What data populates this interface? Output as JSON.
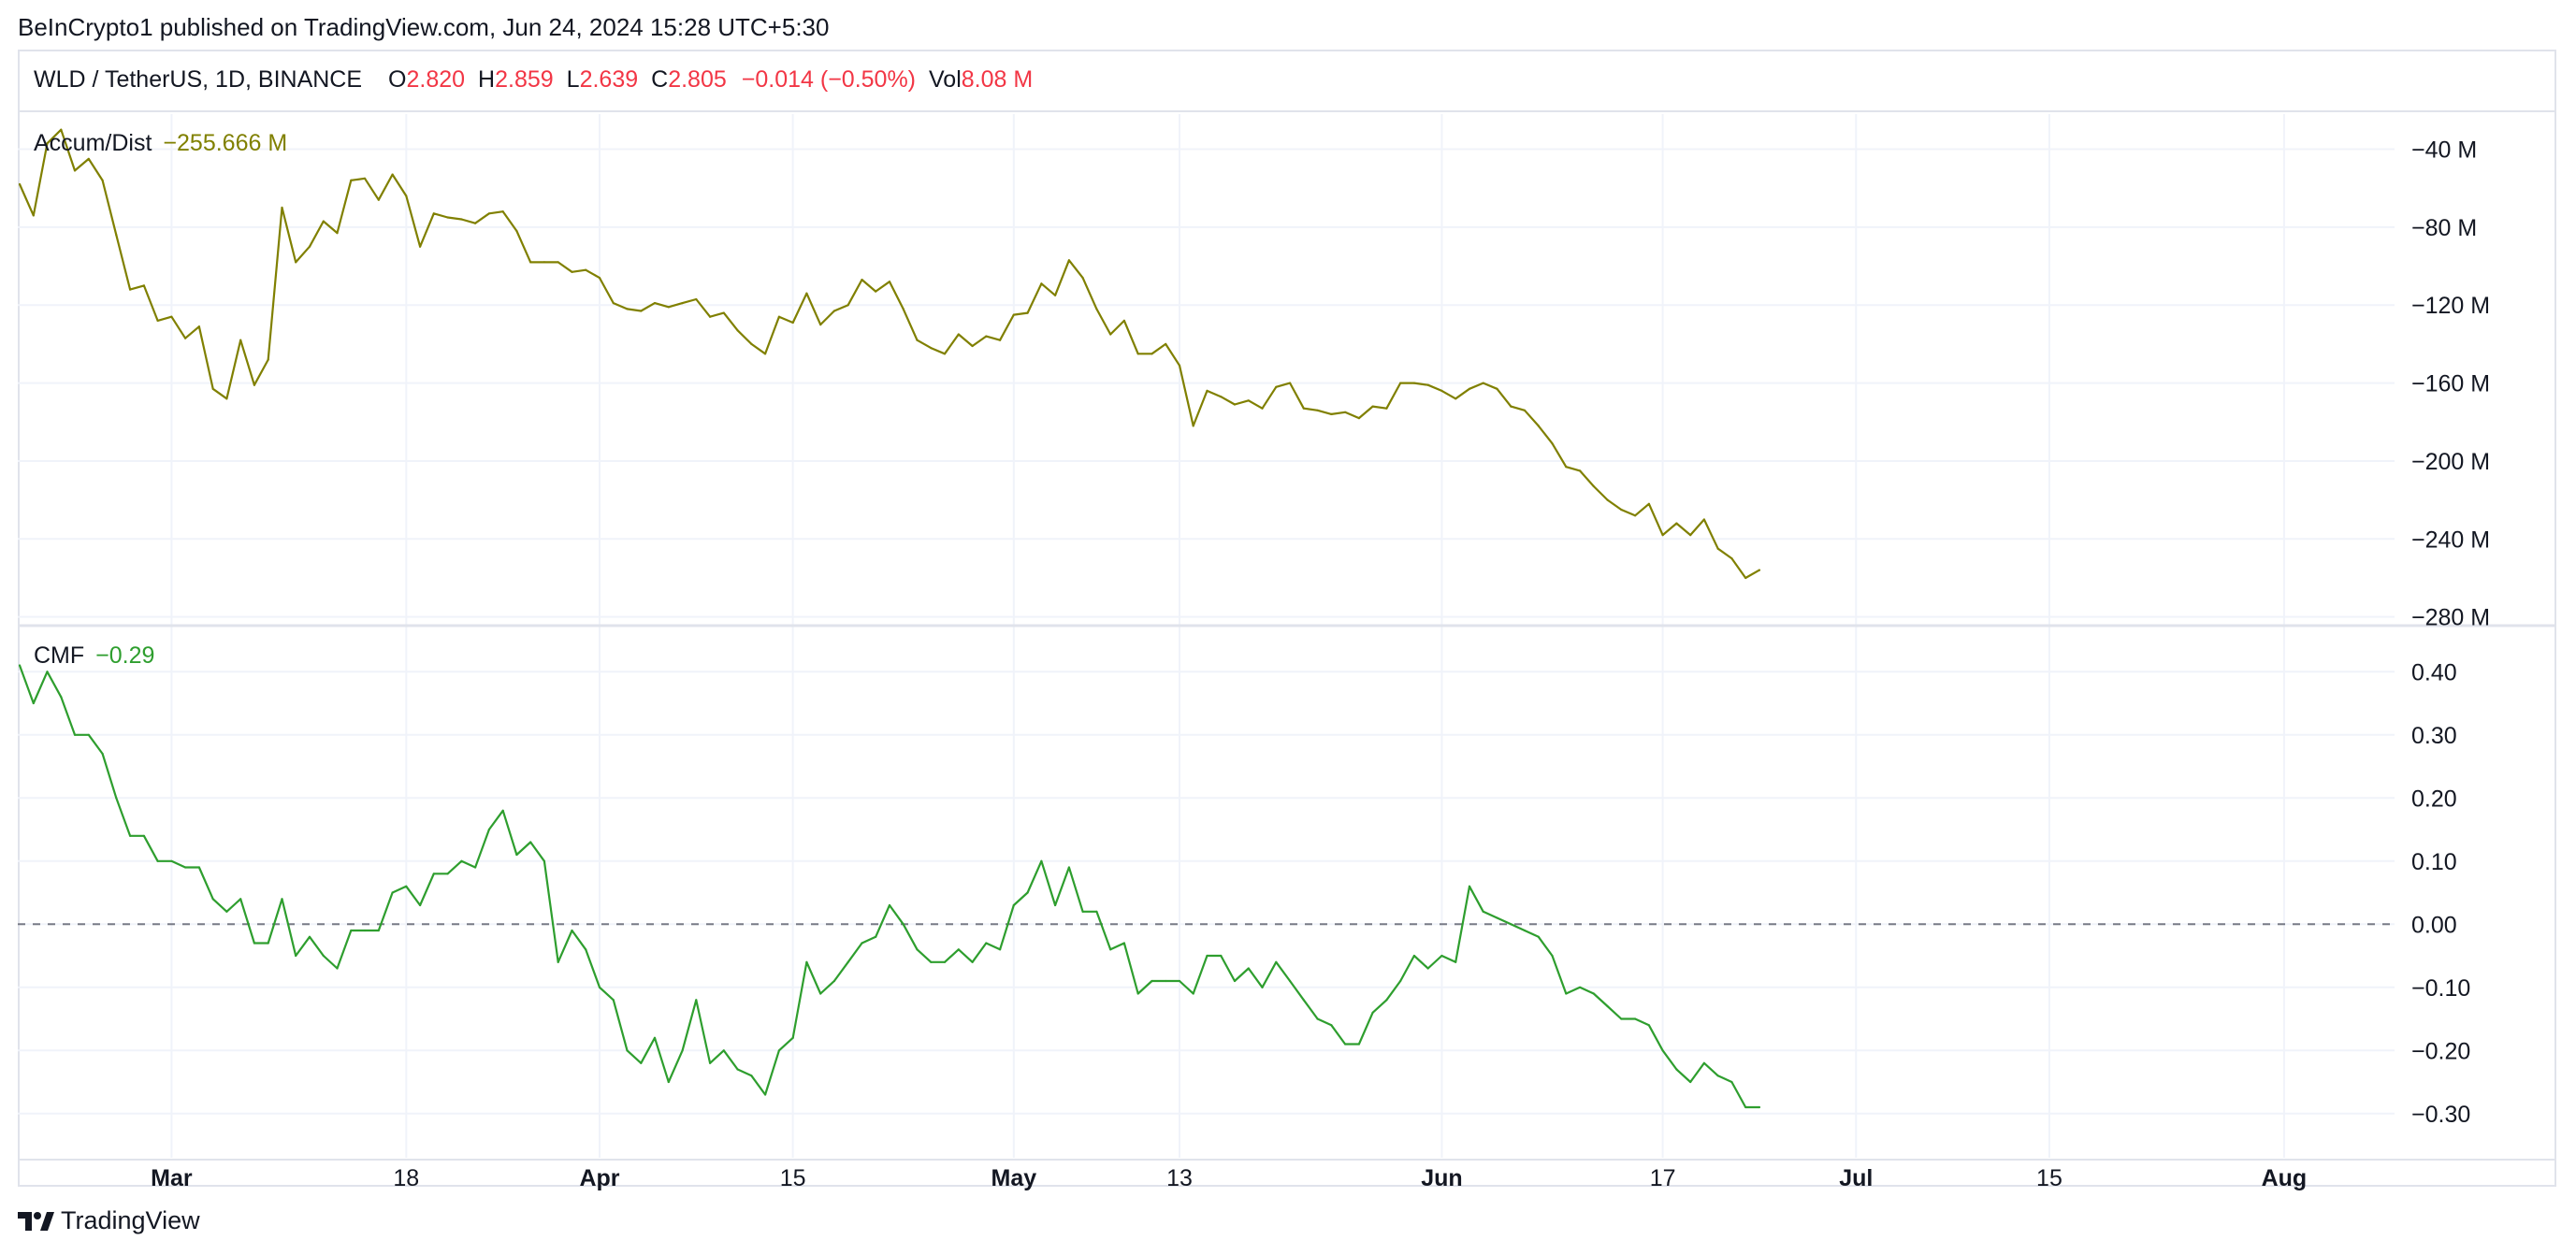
{
  "header": {
    "publish": "BeInCrypto1 published on TradingView.com, Jun 24, 2024 15:28 UTC+5:30",
    "symbol": "WLD / TetherUS, 1D, BINANCE",
    "o_label": "O",
    "o_value": "2.820",
    "h_label": "H",
    "h_value": "2.859",
    "l_label": "L",
    "l_value": "2.639",
    "c_label": "C",
    "c_value": "2.805",
    "change": "−0.014 (−0.50%)",
    "vol_label": "Vol",
    "vol_value": "8.08 M"
  },
  "accum_pane": {
    "name": "Accum/Dist",
    "value": "−255.666 M"
  },
  "cmf_pane": {
    "name": "CMF",
    "value": "−0.29"
  },
  "logo": {
    "icon": "tradingview-logo-icon",
    "text": "TradingView"
  },
  "colors": {
    "accum": "#808000",
    "cmf": "#2e9e2e",
    "value_red": "#f23645",
    "grid": "#f0f3fa"
  },
  "chart_data": [
    {
      "type": "line",
      "title": "Accum/Dist",
      "unit": "M",
      "ylim": [
        -280,
        -20
      ],
      "y_ticks": [
        "−40 M",
        "−80 M",
        "−120 M",
        "−160 M",
        "−200 M",
        "−240 M",
        "−280 M"
      ],
      "x_start": "2024-02-19",
      "x": [
        "2024-02-19",
        "2024-02-20",
        "2024-02-21",
        "2024-02-22",
        "2024-02-23",
        "2024-02-24",
        "2024-02-25",
        "2024-02-26",
        "2024-02-27",
        "2024-02-28",
        "2024-02-29",
        "2024-03-01",
        "2024-03-02",
        "2024-03-03",
        "2024-03-04",
        "2024-03-05",
        "2024-03-06",
        "2024-03-07",
        "2024-03-08",
        "2024-03-09",
        "2024-03-10",
        "2024-03-11",
        "2024-03-12",
        "2024-03-13",
        "2024-03-14",
        "2024-03-15",
        "2024-03-16",
        "2024-03-17",
        "2024-03-18",
        "2024-03-19",
        "2024-03-20",
        "2024-03-21",
        "2024-03-22",
        "2024-03-23",
        "2024-03-24",
        "2024-03-25",
        "2024-03-26",
        "2024-03-27",
        "2024-03-28",
        "2024-03-29",
        "2024-03-30",
        "2024-03-31",
        "2024-04-01",
        "2024-04-02",
        "2024-04-03",
        "2024-04-04",
        "2024-04-05",
        "2024-04-06",
        "2024-04-07",
        "2024-04-08",
        "2024-04-09",
        "2024-04-10",
        "2024-04-11",
        "2024-04-12",
        "2024-04-13",
        "2024-04-14",
        "2024-04-15",
        "2024-04-16",
        "2024-04-17",
        "2024-04-18",
        "2024-04-19",
        "2024-04-20",
        "2024-04-21",
        "2024-04-22",
        "2024-04-23",
        "2024-04-24",
        "2024-04-25",
        "2024-04-26",
        "2024-04-27",
        "2024-04-28",
        "2024-04-29",
        "2024-04-30",
        "2024-05-01",
        "2024-05-02",
        "2024-05-03",
        "2024-05-04",
        "2024-05-05",
        "2024-05-06",
        "2024-05-07",
        "2024-05-08",
        "2024-05-09",
        "2024-05-10",
        "2024-05-11",
        "2024-05-12",
        "2024-05-13",
        "2024-05-14",
        "2024-05-15",
        "2024-05-16",
        "2024-05-17",
        "2024-05-18",
        "2024-05-19",
        "2024-05-20",
        "2024-05-21",
        "2024-05-22",
        "2024-05-23",
        "2024-05-24",
        "2024-05-25",
        "2024-05-26",
        "2024-05-27",
        "2024-05-28",
        "2024-05-29",
        "2024-05-30",
        "2024-05-31",
        "2024-06-01",
        "2024-06-02",
        "2024-06-03",
        "2024-06-04",
        "2024-06-05",
        "2024-06-06",
        "2024-06-07",
        "2024-06-08",
        "2024-06-09",
        "2024-06-10",
        "2024-06-11",
        "2024-06-12",
        "2024-06-13",
        "2024-06-14",
        "2024-06-15",
        "2024-06-16",
        "2024-06-17",
        "2024-06-18",
        "2024-06-19",
        "2024-06-20",
        "2024-06-21",
        "2024-06-22",
        "2024-06-23",
        "2024-06-24"
      ],
      "values": [
        -58,
        -74,
        -37,
        -30,
        -51,
        -45,
        -56,
        -84,
        -112,
        -110,
        -128,
        -126,
        -137,
        -131,
        -163,
        -168,
        -138,
        -161,
        -148,
        -70,
        -98,
        -90,
        -77,
        -83,
        -56,
        -55,
        -66,
        -53,
        -64,
        -90,
        -73,
        -75,
        -76,
        -78,
        -73,
        -72,
        -82,
        -98,
        -98,
        -98,
        -103,
        -102,
        -106,
        -119,
        -122,
        -123,
        -119,
        -121,
        -119,
        -117,
        -126,
        -124,
        -133,
        -140,
        -145,
        -126,
        -129,
        -114,
        -130,
        -123,
        -120,
        -107,
        -113,
        -108,
        -122,
        -138,
        -142,
        -145,
        -135,
        -141,
        -136,
        -138,
        -125,
        -124,
        -109,
        -115,
        -97,
        -106,
        -122,
        -135,
        -128,
        -145,
        -145,
        -140,
        -151,
        -182,
        -164,
        -167,
        -171,
        -169,
        -173,
        -162,
        -160,
        -173,
        -174,
        -176,
        -175,
        -178,
        -172,
        -173,
        -160,
        -160,
        -161,
        -164,
        -168,
        -163,
        -160,
        -163,
        -172,
        -174,
        -182,
        -191,
        -203,
        -205,
        -213,
        -220,
        -225,
        -228,
        -222,
        -238,
        -232,
        -238,
        -230,
        -245,
        -250,
        -260,
        -256
      ]
    },
    {
      "type": "line",
      "title": "CMF",
      "ylim": [
        -0.35,
        0.45
      ],
      "y_ticks": [
        "0.40",
        "0.30",
        "0.20",
        "0.10",
        "0.00",
        "−0.10",
        "−0.20",
        "−0.30"
      ],
      "zero_line": 0.0,
      "x_start": "2024-02-19",
      "x": [
        "2024-02-19",
        "2024-02-20",
        "2024-02-21",
        "2024-02-22",
        "2024-02-23",
        "2024-02-24",
        "2024-02-25",
        "2024-02-26",
        "2024-02-27",
        "2024-02-28",
        "2024-02-29",
        "2024-03-01",
        "2024-03-02",
        "2024-03-03",
        "2024-03-04",
        "2024-03-05",
        "2024-03-06",
        "2024-03-07",
        "2024-03-08",
        "2024-03-09",
        "2024-03-10",
        "2024-03-11",
        "2024-03-12",
        "2024-03-13",
        "2024-03-14",
        "2024-03-15",
        "2024-03-16",
        "2024-03-17",
        "2024-03-18",
        "2024-03-19",
        "2024-03-20",
        "2024-03-21",
        "2024-03-22",
        "2024-03-23",
        "2024-03-24",
        "2024-03-25",
        "2024-03-26",
        "2024-03-27",
        "2024-03-28",
        "2024-03-29",
        "2024-03-30",
        "2024-03-31",
        "2024-04-01",
        "2024-04-02",
        "2024-04-03",
        "2024-04-04",
        "2024-04-05",
        "2024-04-06",
        "2024-04-07",
        "2024-04-08",
        "2024-04-09",
        "2024-04-10",
        "2024-04-11",
        "2024-04-12",
        "2024-04-13",
        "2024-04-14",
        "2024-04-15",
        "2024-04-16",
        "2024-04-17",
        "2024-04-18",
        "2024-04-19",
        "2024-04-20",
        "2024-04-21",
        "2024-04-22",
        "2024-04-23",
        "2024-04-24",
        "2024-04-25",
        "2024-04-26",
        "2024-04-27",
        "2024-04-28",
        "2024-04-29",
        "2024-04-30",
        "2024-05-01",
        "2024-05-02",
        "2024-05-03",
        "2024-05-04",
        "2024-05-05",
        "2024-05-06",
        "2024-05-07",
        "2024-05-08",
        "2024-05-09",
        "2024-05-10",
        "2024-05-11",
        "2024-05-12",
        "2024-05-13",
        "2024-05-14",
        "2024-05-15",
        "2024-05-16",
        "2024-05-17",
        "2024-05-18",
        "2024-05-19",
        "2024-05-20",
        "2024-05-21",
        "2024-05-22",
        "2024-05-23",
        "2024-05-24",
        "2024-05-25",
        "2024-05-26",
        "2024-05-27",
        "2024-05-28",
        "2024-05-29",
        "2024-05-30",
        "2024-05-31",
        "2024-06-01",
        "2024-06-02",
        "2024-06-03",
        "2024-06-04",
        "2024-06-05",
        "2024-06-06",
        "2024-06-07",
        "2024-06-08",
        "2024-06-09",
        "2024-06-10",
        "2024-06-11",
        "2024-06-12",
        "2024-06-13",
        "2024-06-14",
        "2024-06-15",
        "2024-06-16",
        "2024-06-17",
        "2024-06-18",
        "2024-06-19",
        "2024-06-20",
        "2024-06-21",
        "2024-06-22",
        "2024-06-23",
        "2024-06-24"
      ],
      "values": [
        0.41,
        0.35,
        0.4,
        0.36,
        0.3,
        0.3,
        0.27,
        0.2,
        0.14,
        0.14,
        0.1,
        0.1,
        0.09,
        0.09,
        0.04,
        0.02,
        0.04,
        -0.03,
        -0.03,
        0.04,
        -0.05,
        -0.02,
        -0.05,
        -0.07,
        -0.01,
        -0.01,
        -0.01,
        0.05,
        0.06,
        0.03,
        0.08,
        0.08,
        0.1,
        0.09,
        0.15,
        0.18,
        0.11,
        0.13,
        0.1,
        -0.06,
        -0.01,
        -0.04,
        -0.1,
        -0.12,
        -0.2,
        -0.22,
        -0.18,
        -0.25,
        -0.2,
        -0.12,
        -0.22,
        -0.2,
        -0.23,
        -0.24,
        -0.27,
        -0.2,
        -0.18,
        -0.06,
        -0.11,
        -0.09,
        -0.06,
        -0.03,
        -0.02,
        0.03,
        0.0,
        -0.04,
        -0.06,
        -0.06,
        -0.04,
        -0.06,
        -0.03,
        -0.04,
        0.03,
        0.05,
        0.1,
        0.03,
        0.09,
        0.02,
        0.02,
        -0.04,
        -0.03,
        -0.11,
        -0.09,
        -0.09,
        -0.09,
        -0.11,
        -0.05,
        -0.05,
        -0.09,
        -0.07,
        -0.1,
        -0.06,
        -0.09,
        -0.12,
        -0.15,
        -0.16,
        -0.19,
        -0.19,
        -0.14,
        -0.12,
        -0.09,
        -0.05,
        -0.07,
        -0.05,
        -0.06,
        0.06,
        0.02,
        0.01,
        0.0,
        -0.01,
        -0.02,
        -0.05,
        -0.11,
        -0.1,
        -0.11,
        -0.13,
        -0.15,
        -0.15,
        -0.16,
        -0.2,
        -0.23,
        -0.25,
        -0.22,
        -0.24,
        -0.25,
        -0.29,
        -0.29
      ]
    }
  ],
  "x_axis": {
    "labels": [
      {
        "date": "2024-03-01",
        "text": "Mar",
        "bold": true
      },
      {
        "date": "2024-03-18",
        "text": "18",
        "bold": false
      },
      {
        "date": "2024-04-01",
        "text": "Apr",
        "bold": true
      },
      {
        "date": "2024-04-15",
        "text": "15",
        "bold": false
      },
      {
        "date": "2024-05-01",
        "text": "May",
        "bold": true
      },
      {
        "date": "2024-05-13",
        "text": "13",
        "bold": false
      },
      {
        "date": "2024-06-01",
        "text": "Jun",
        "bold": true
      },
      {
        "date": "2024-06-17",
        "text": "17",
        "bold": false
      },
      {
        "date": "2024-07-01",
        "text": "Jul",
        "bold": true
      },
      {
        "date": "2024-07-15",
        "text": "15",
        "bold": false
      },
      {
        "date": "2024-08-01",
        "text": "Aug",
        "bold": true
      }
    ],
    "range": [
      "2024-02-19",
      "2024-08-09"
    ]
  }
}
